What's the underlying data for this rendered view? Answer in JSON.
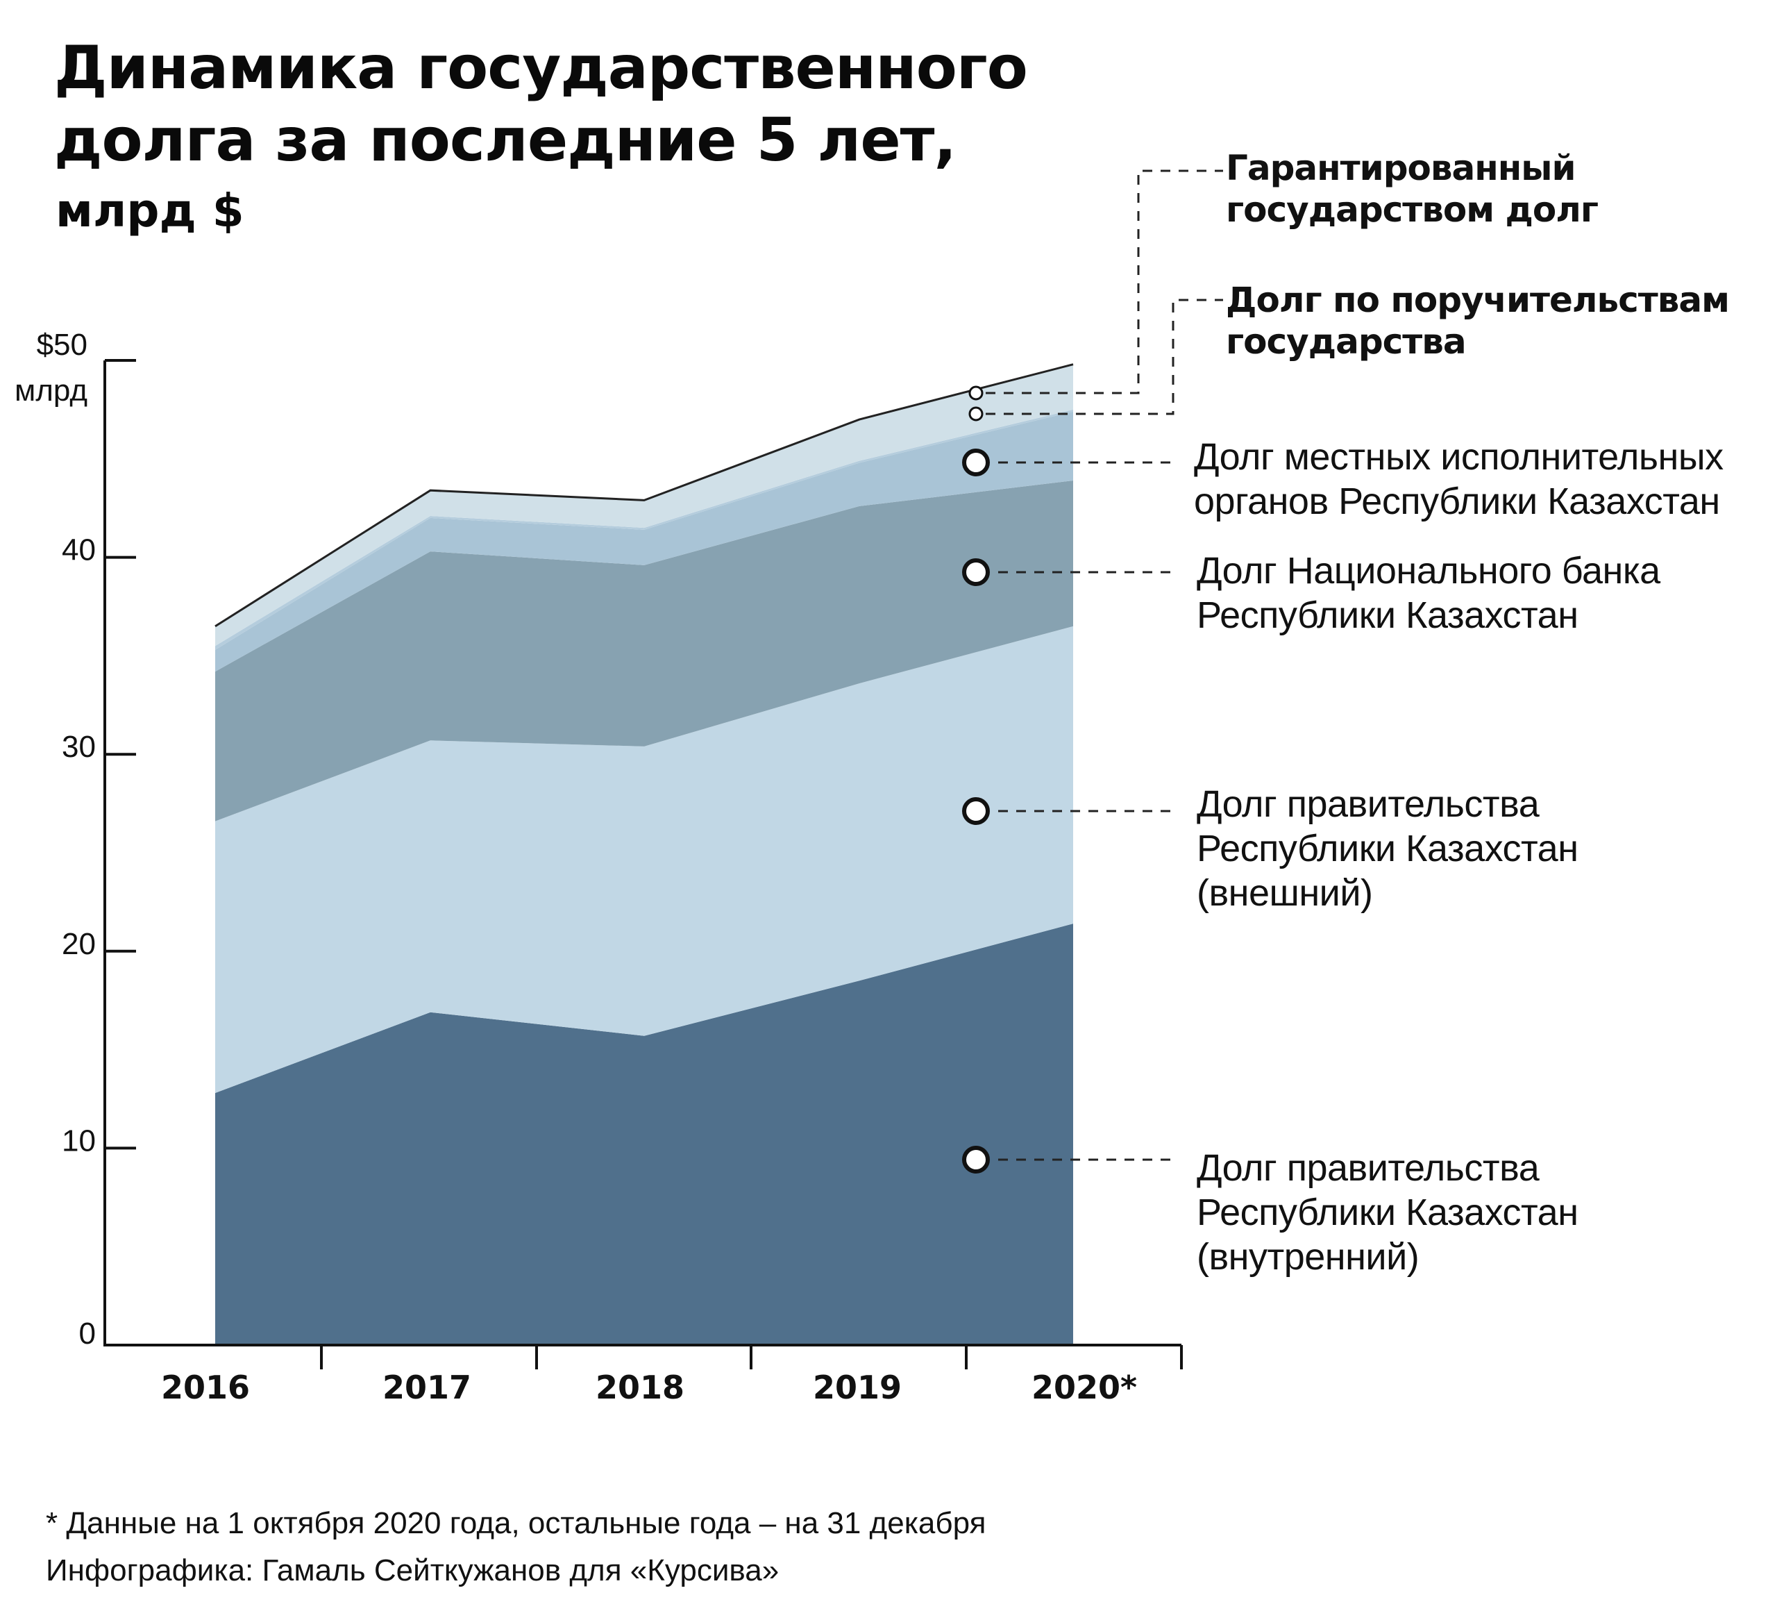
{
  "title": "Динамика государственного\nдолга за последние 5 лет,",
  "subtitle": "млрд $",
  "footnote": "* Данные на 1 октября 2020 года, остальные года – на 31 декабря",
  "credit": "Инфографика: Гамаль Сейткужанов для «Курсива»",
  "chart_data": {
    "type": "area",
    "stacked": true,
    "x": [
      "2016",
      "2017",
      "2018",
      "2019",
      "2020*"
    ],
    "ylim": [
      0,
      50
    ],
    "yticks": [
      {
        "value": 0,
        "label": "0"
      },
      {
        "value": 10,
        "label": "10"
      },
      {
        "value": 20,
        "label": "20"
      },
      {
        "value": 30,
        "label": "30"
      },
      {
        "value": 40,
        "label": "40"
      },
      {
        "value": 50,
        "label": "$50\nмлрд"
      }
    ],
    "series": [
      {
        "name": "Долг правительства\nРеспублики Казахстан\n(внутренний)",
        "values": [
          12.8,
          16.9,
          15.7,
          18.5,
          21.4
        ],
        "color": "#50708c"
      },
      {
        "name": "Долг правительства\nРеспублики Казахстан\n(внешний)",
        "values": [
          13.8,
          13.8,
          14.7,
          15.1,
          15.1
        ],
        "color": "#c1d7e5"
      },
      {
        "name": "Долг Национального банка\nРеспублики Казахстан",
        "values": [
          7.6,
          9.6,
          9.2,
          9.0,
          7.4
        ],
        "color": "#87a2b1"
      },
      {
        "name": "Долг местных исполнительных\nорганов Республики Казахстан",
        "values": [
          1.1,
          1.7,
          1.8,
          2.2,
          3.5
        ],
        "color": "#a9c4d6"
      },
      {
        "name": "Долг по поручительствам\nгосударства",
        "values": [
          0.2,
          0.1,
          0.1,
          0.1,
          0.1
        ],
        "color": "#b5cddd"
      },
      {
        "name": "Гарантированный\nгосударством долг",
        "values": [
          1.0,
          1.3,
          1.4,
          2.1,
          2.3
        ],
        "color": "#d0e0e8"
      }
    ],
    "grid": false,
    "legend": "right"
  }
}
